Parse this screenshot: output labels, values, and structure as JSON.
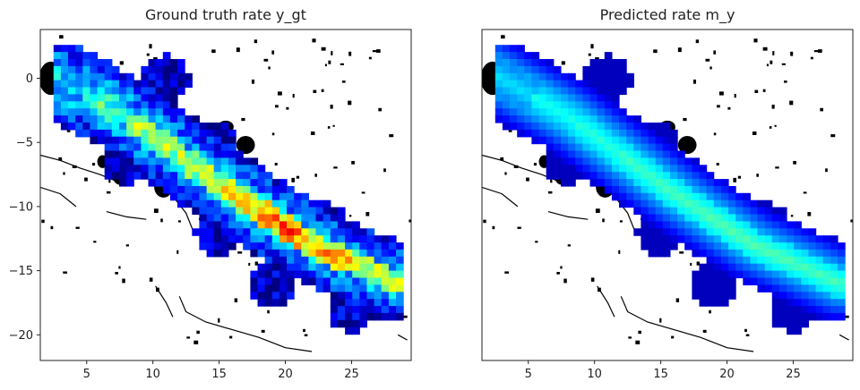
{
  "chart_data": [
    {
      "type": "heatmap",
      "title": "Ground truth rate y_gt",
      "xlim": [
        1.5,
        29.5
      ],
      "ylim": [
        -22.0,
        3.8
      ],
      "xticks": [
        5,
        10,
        15,
        20,
        25
      ],
      "yticks": [
        0,
        -5,
        -10,
        -15,
        -20
      ],
      "xtick_labels": [
        "5",
        "10",
        "15",
        "20",
        "25"
      ],
      "ytick_labels": [
        "0",
        "−5",
        "−10",
        "−15",
        "−20"
      ],
      "colormap": "jet",
      "value_range": [
        0,
        1
      ],
      "grid": false,
      "legend": "none",
      "band": {
        "path": [
          [
            2,
            0.5
          ],
          [
            8,
            -3
          ],
          [
            16,
            -9
          ],
          [
            22,
            -13
          ],
          [
            28.5,
            -16
          ]
        ],
        "core_half_width": 0.9,
        "edge_half_width": 3.0
      },
      "lobes": [
        [
          8,
          -6.5
        ],
        [
          12,
          -7.5
        ],
        [
          14.5,
          -5
        ],
        [
          17,
          -10
        ],
        [
          23,
          -11.5
        ],
        [
          15,
          -12
        ],
        [
          19,
          -16
        ],
        [
          25,
          -18
        ],
        [
          28,
          -17
        ],
        [
          11,
          0
        ]
      ],
      "peak_values": [
        0.35,
        0.45,
        0.55,
        0.6,
        0.7,
        0.8,
        0.72,
        0.62
      ],
      "noisy": true
    },
    {
      "type": "heatmap",
      "title": "Predicted rate m_y",
      "xlim": [
        1.5,
        29.5
      ],
      "ylim": [
        -22.0,
        3.8
      ],
      "xticks": [
        5,
        10,
        15,
        20,
        25
      ],
      "xtick_labels": [
        "5",
        "10",
        "15",
        "20",
        "25"
      ],
      "colormap": "jet",
      "value_range": [
        0,
        1
      ],
      "grid": false,
      "legend": "none",
      "band": {
        "path": [
          [
            2,
            0.5
          ],
          [
            8,
            -3
          ],
          [
            16,
            -9
          ],
          [
            22,
            -13
          ],
          [
            28.5,
            -16
          ]
        ],
        "core_half_width": 1.1,
        "edge_half_width": 3.0
      },
      "lobes": [
        [
          8,
          -6.5
        ],
        [
          12,
          -7.5
        ],
        [
          14.5,
          -5
        ],
        [
          17,
          -10
        ],
        [
          23,
          -11.5
        ],
        [
          15,
          -12
        ],
        [
          19,
          -16
        ],
        [
          25,
          -18
        ],
        [
          28,
          -17
        ],
        [
          11,
          0
        ]
      ],
      "peak_values": [
        0.35,
        0.4,
        0.42,
        0.44,
        0.45,
        0.46,
        0.46,
        0.45
      ],
      "noisy": false
    }
  ]
}
